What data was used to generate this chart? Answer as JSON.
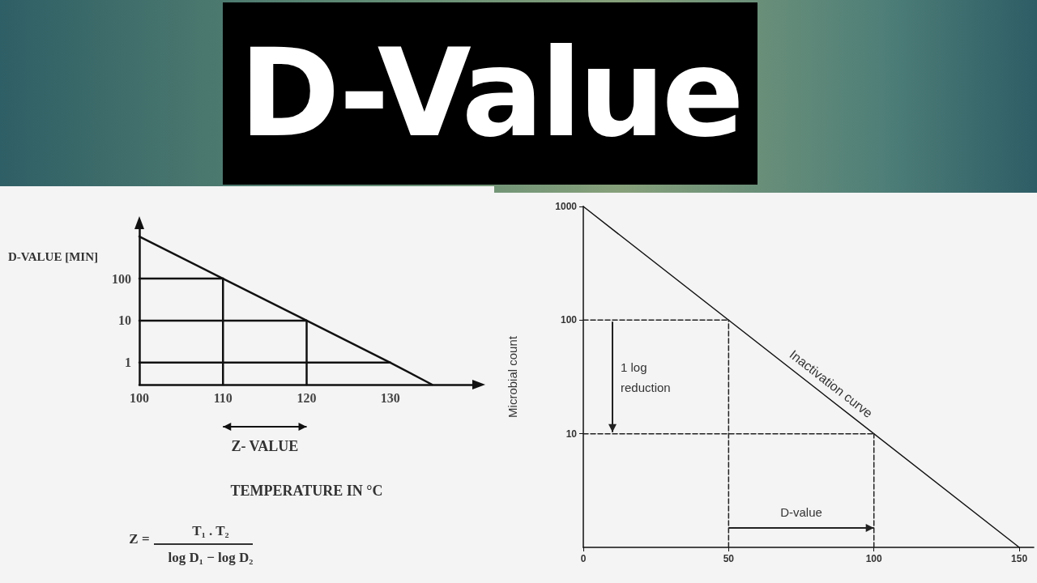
{
  "chart_data": [
    {
      "type": "line",
      "title": "D-Value",
      "xlabel": "TEMPERATURE IN °C",
      "ylabel": "D-VALUE [MIN]",
      "xlim": [
        100,
        140
      ],
      "xticks": [
        100,
        110,
        120,
        130
      ],
      "ylim": [
        0.3,
        1500
      ],
      "yticks": [
        1,
        10,
        100
      ],
      "log": "y",
      "marker": "none",
      "grid": false,
      "series": [
        {
          "color": "#111111",
          "x": [
            100,
            110,
            120,
            130,
            135
          ],
          "values": [
            1000,
            100,
            10,
            1,
            0.3
          ]
        },
        {
          "color": "#111111",
          "x": [
            100,
            110
          ],
          "values": [
            100,
            100
          ]
        },
        {
          "color": "#111111",
          "x": [
            100,
            120
          ],
          "values": [
            10,
            10
          ]
        },
        {
          "color": "#111111",
          "x": [
            100,
            130
          ],
          "values": [
            1,
            1
          ]
        },
        {
          "color": "#111111",
          "x": [
            110,
            110
          ],
          "values": [
            0.3,
            100
          ]
        },
        {
          "color": "#111111",
          "x": [
            120,
            120
          ],
          "values": [
            0.3,
            10
          ]
        }
      ],
      "annotations": [
        "Z- VALUE",
        "Z =",
        "T₁ . T₂",
        "log D₁ − log D₂"
      ]
    },
    {
      "type": "line",
      "ylabel": "Microbial count",
      "xlim": [
        0,
        155
      ],
      "xticks": [
        0,
        50,
        100,
        150
      ],
      "ylim": [
        1,
        1000
      ],
      "yticks": [
        10,
        100,
        1000
      ],
      "log": "y",
      "marker": "none",
      "grid": false,
      "series": [
        {
          "color": "#111111",
          "x": [
            0,
            150
          ],
          "values": [
            1000,
            1
          ]
        },
        {
          "color": "#222222",
          "x": [
            0,
            50
          ],
          "values": [
            100,
            100
          ],
          "line_style": "dashed"
        },
        {
          "color": "#222222",
          "x": [
            0,
            100
          ],
          "values": [
            10,
            10
          ],
          "line_style": "dashed"
        },
        {
          "color": "#222222",
          "x": [
            50,
            50
          ],
          "values": [
            1,
            100
          ],
          "line_style": "dashed"
        },
        {
          "color": "#222222",
          "x": [
            100,
            100
          ],
          "values": [
            1,
            10
          ],
          "line_style": "dashed"
        }
      ],
      "annotations": [
        "Inactivation curve",
        "1 log reduction",
        "D-value"
      ]
    }
  ]
}
